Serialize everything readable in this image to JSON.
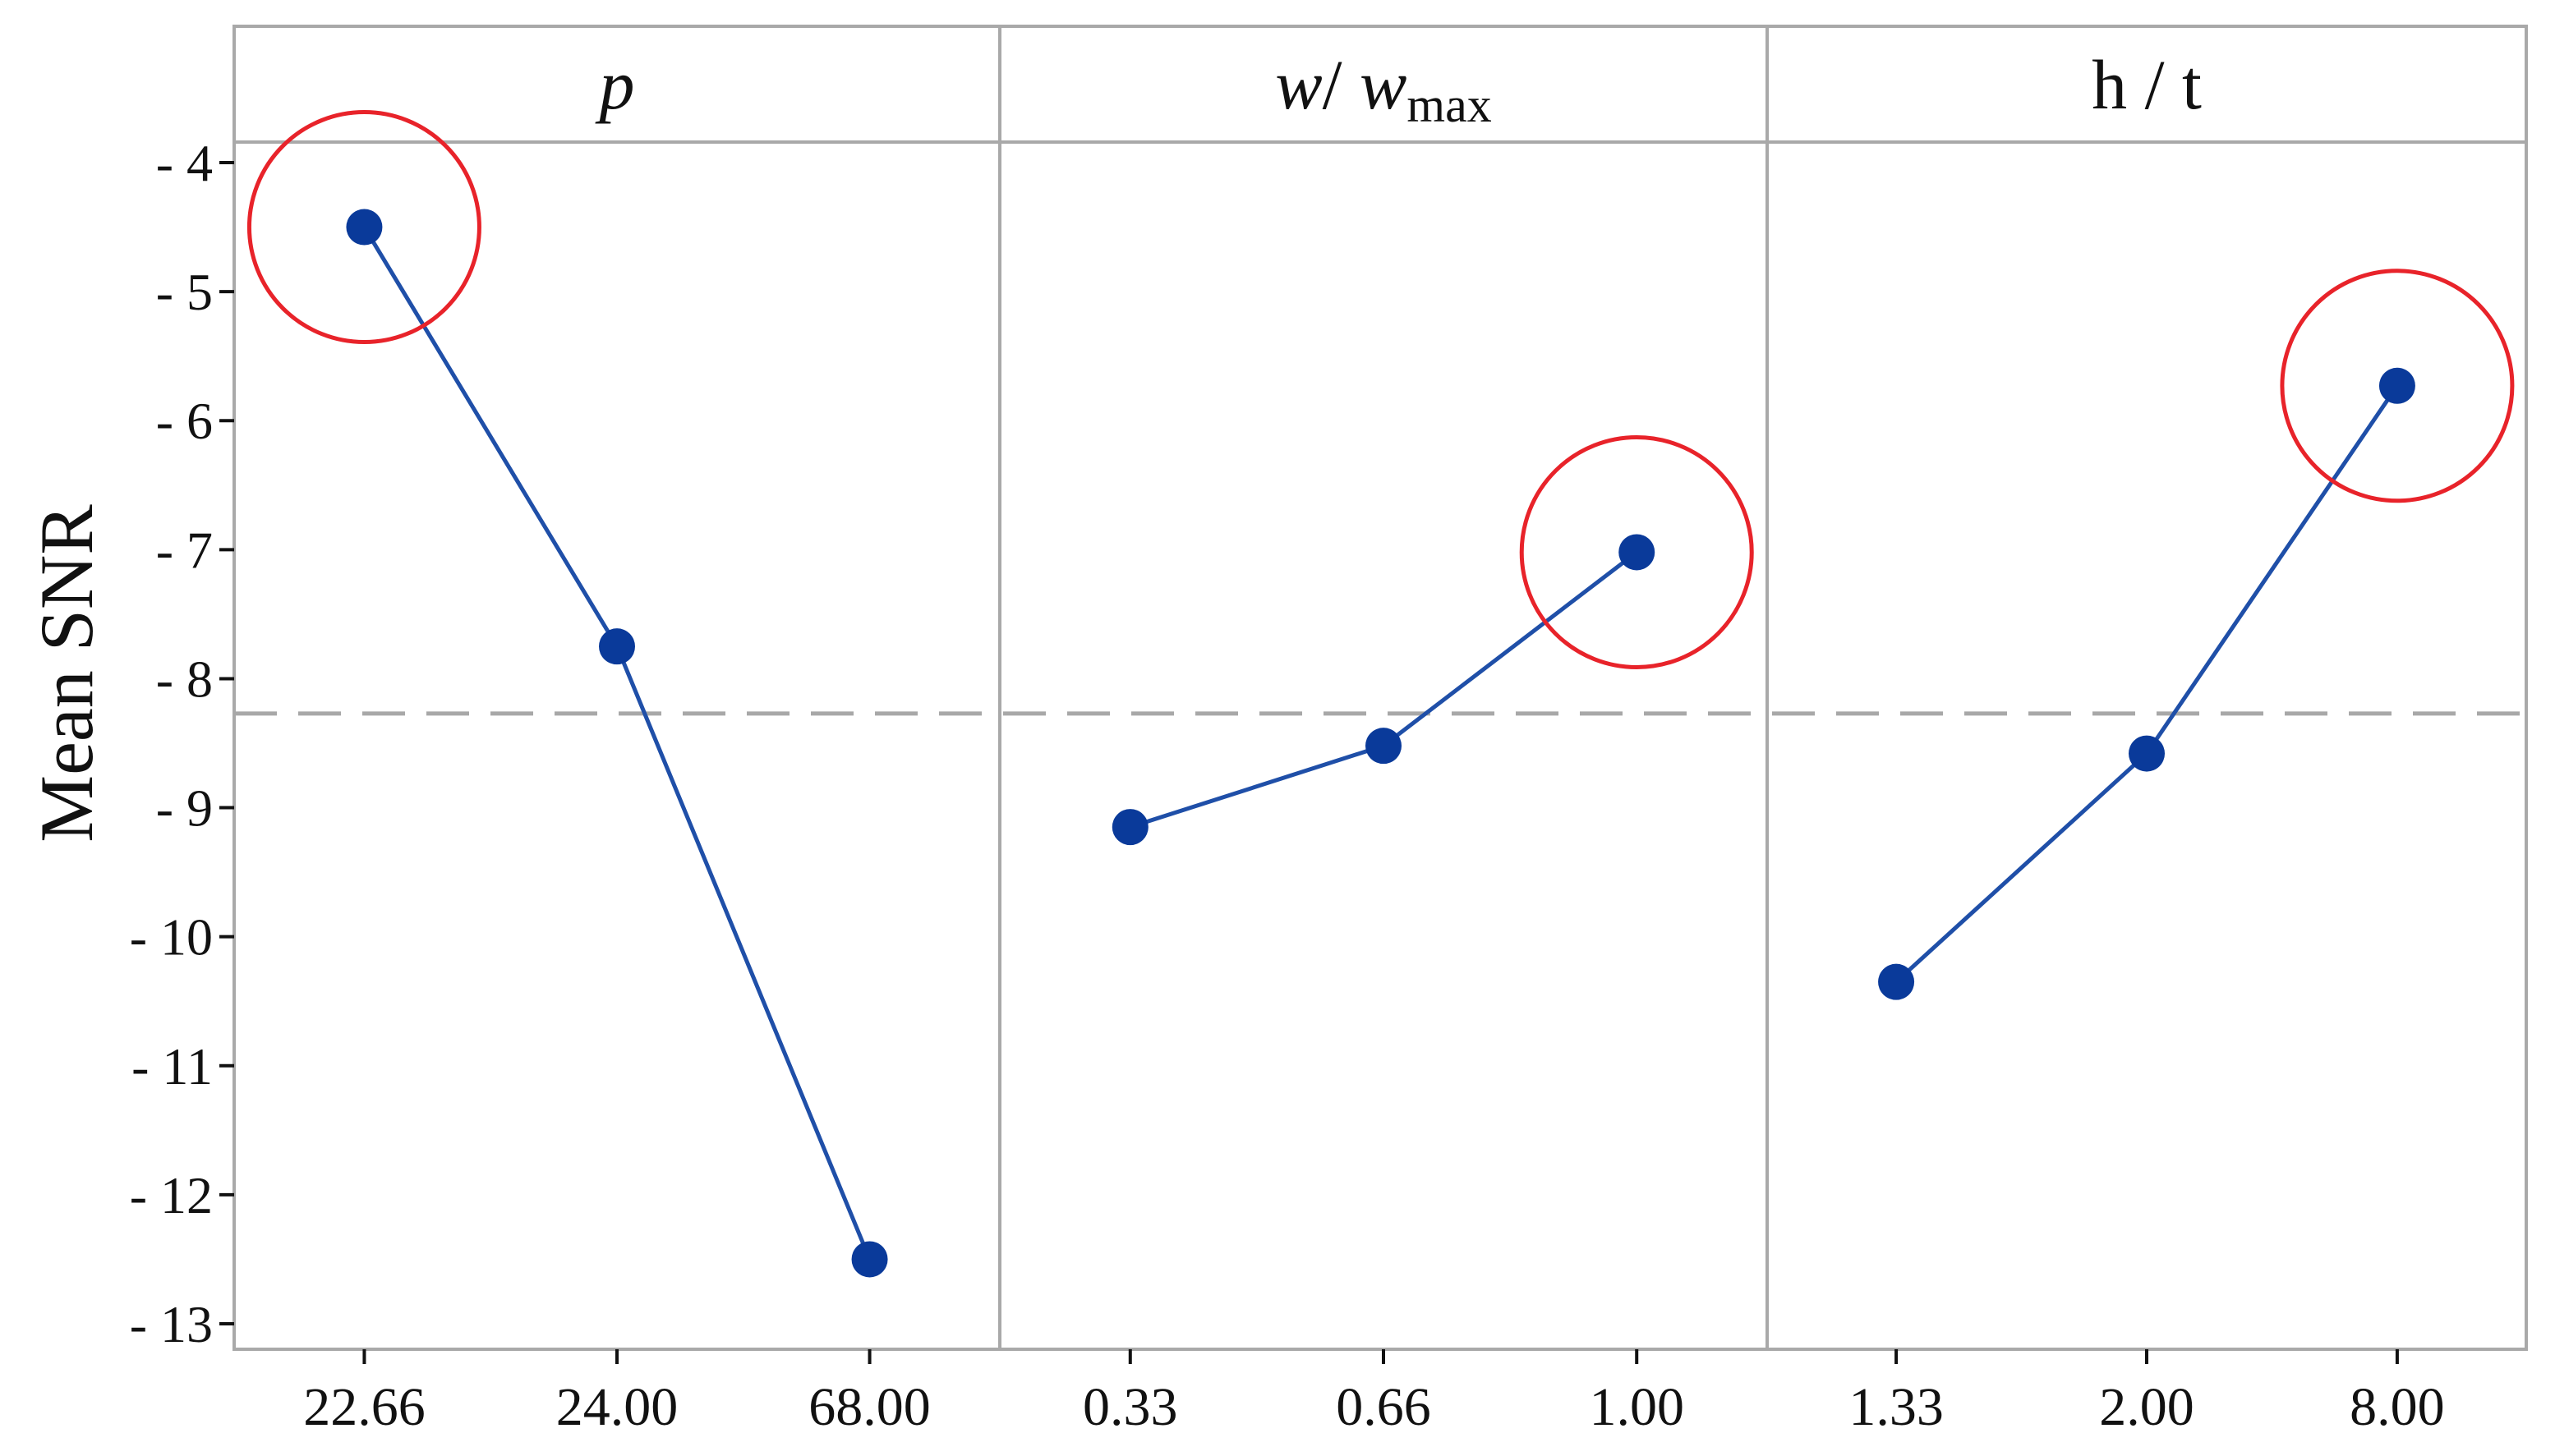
{
  "chart_data": {
    "type": "line",
    "ylabel": "Mean SNR",
    "yticks": [
      -4,
      -5,
      -6,
      -7,
      -8,
      -9,
      -10,
      -11,
      -12,
      -13
    ],
    "ytick_labels": [
      "- 4",
      "- 5",
      "- 6",
      "- 7",
      "- 8",
      "- 9",
      "- 10",
      "- 11",
      "- 12",
      "- 13"
    ],
    "ylim": [
      -13.2,
      -3.0
    ],
    "grid": false,
    "reference_line": -8.27,
    "panels": [
      {
        "title": "p",
        "categories": [
          "22.66",
          "24.00",
          "68.00"
        ],
        "values": [
          -4.5,
          -7.75,
          -12.5
        ],
        "highlight_index": 0
      },
      {
        "title": "w/ wmax",
        "categories": [
          "0.33",
          "0.66",
          "1.00"
        ],
        "values": [
          -9.15,
          -8.52,
          -7.02
        ],
        "highlight_index": 2
      },
      {
        "title": "h / t",
        "categories": [
          "1.33",
          "2.00",
          "8.00"
        ],
        "values": [
          -10.35,
          -8.58,
          -5.73
        ],
        "highlight_index": 2
      }
    ],
    "colors": {
      "series": "#1f4fa8",
      "marker": "#0a3a9a",
      "highlight": "#e8232a",
      "reference": "#a8a8a8",
      "frame": "#a9a9a9"
    }
  }
}
